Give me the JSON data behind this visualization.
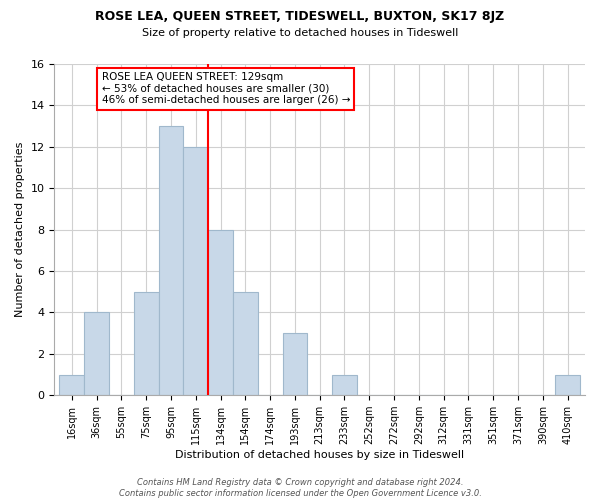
{
  "title": "ROSE LEA, QUEEN STREET, TIDESWELL, BUXTON, SK17 8JZ",
  "subtitle": "Size of property relative to detached houses in Tideswell",
  "xlabel": "Distribution of detached houses by size in Tideswell",
  "ylabel": "Number of detached properties",
  "bin_labels": [
    "16sqm",
    "36sqm",
    "55sqm",
    "75sqm",
    "95sqm",
    "115sqm",
    "134sqm",
    "154sqm",
    "174sqm",
    "193sqm",
    "213sqm",
    "233sqm",
    "252sqm",
    "272sqm",
    "292sqm",
    "312sqm",
    "331sqm",
    "351sqm",
    "371sqm",
    "390sqm",
    "410sqm"
  ],
  "bin_counts": [
    1,
    4,
    0,
    5,
    13,
    12,
    8,
    5,
    0,
    3,
    0,
    1,
    0,
    0,
    0,
    0,
    0,
    0,
    0,
    0,
    1
  ],
  "bar_color": "#c8d8e8",
  "bar_edge_color": "#a0b8cc",
  "vline_x_index": 5.5,
  "vline_color": "red",
  "annotation_line1": "ROSE LEA QUEEN STREET: 129sqm",
  "annotation_line2": "← 53% of detached houses are smaller (30)",
  "annotation_line3": "46% of semi-detached houses are larger (26) →",
  "annotation_box_edge": "red",
  "ylim": [
    0,
    16
  ],
  "yticks": [
    0,
    2,
    4,
    6,
    8,
    10,
    12,
    14,
    16
  ],
  "footer_line1": "Contains HM Land Registry data © Crown copyright and database right 2024.",
  "footer_line2": "Contains public sector information licensed under the Open Government Licence v3.0.",
  "bg_color": "#ffffff",
  "grid_color": "#d0d0d0"
}
